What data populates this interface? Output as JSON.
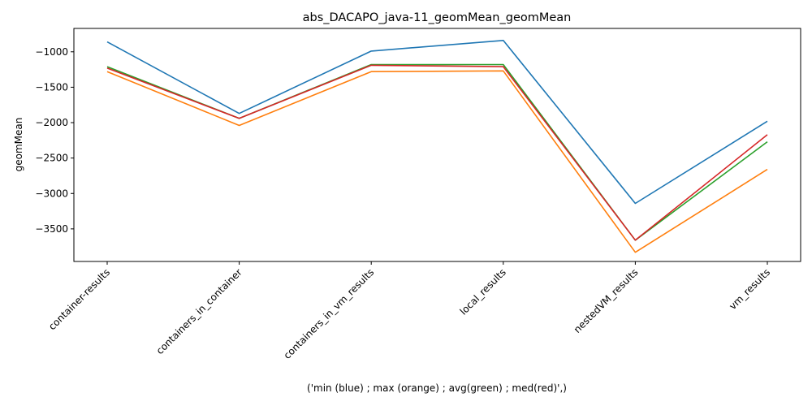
{
  "chart_data": {
    "type": "line",
    "title": "abs_DACAPO_java-11_geomMean_geomMean",
    "xlabel": "('min (blue) ; max (orange) ; avg(green) ; med(red)',)",
    "ylabel": "geomMean",
    "categories": [
      "container-results",
      "containers_in_container",
      "containers_in_vm_results",
      "local_results",
      "nestedVM_results",
      "vm_results"
    ],
    "ylim": [
      -3960,
      -670
    ],
    "yticks": [
      -1000,
      -1500,
      -2000,
      -2500,
      -3000,
      -3500
    ],
    "ytick_labels": [
      "−1000",
      "−1500",
      "−2000",
      "−2500",
      "−3000",
      "−3500"
    ],
    "grid": false,
    "series": [
      {
        "color": "#1f77b4",
        "values": [
          -860,
          -1870,
          -990,
          -840,
          -3140,
          -1980
        ]
      },
      {
        "color": "#ff7f0e",
        "values": [
          -1280,
          -2040,
          -1280,
          -1270,
          -3830,
          -2660
        ]
      },
      {
        "color": "#2ca02c",
        "values": [
          -1210,
          -1940,
          -1180,
          -1180,
          -3660,
          -2270
        ]
      },
      {
        "color": "#d62728",
        "values": [
          -1230,
          -1940,
          -1190,
          -1210,
          -3660,
          -2170
        ]
      }
    ]
  }
}
